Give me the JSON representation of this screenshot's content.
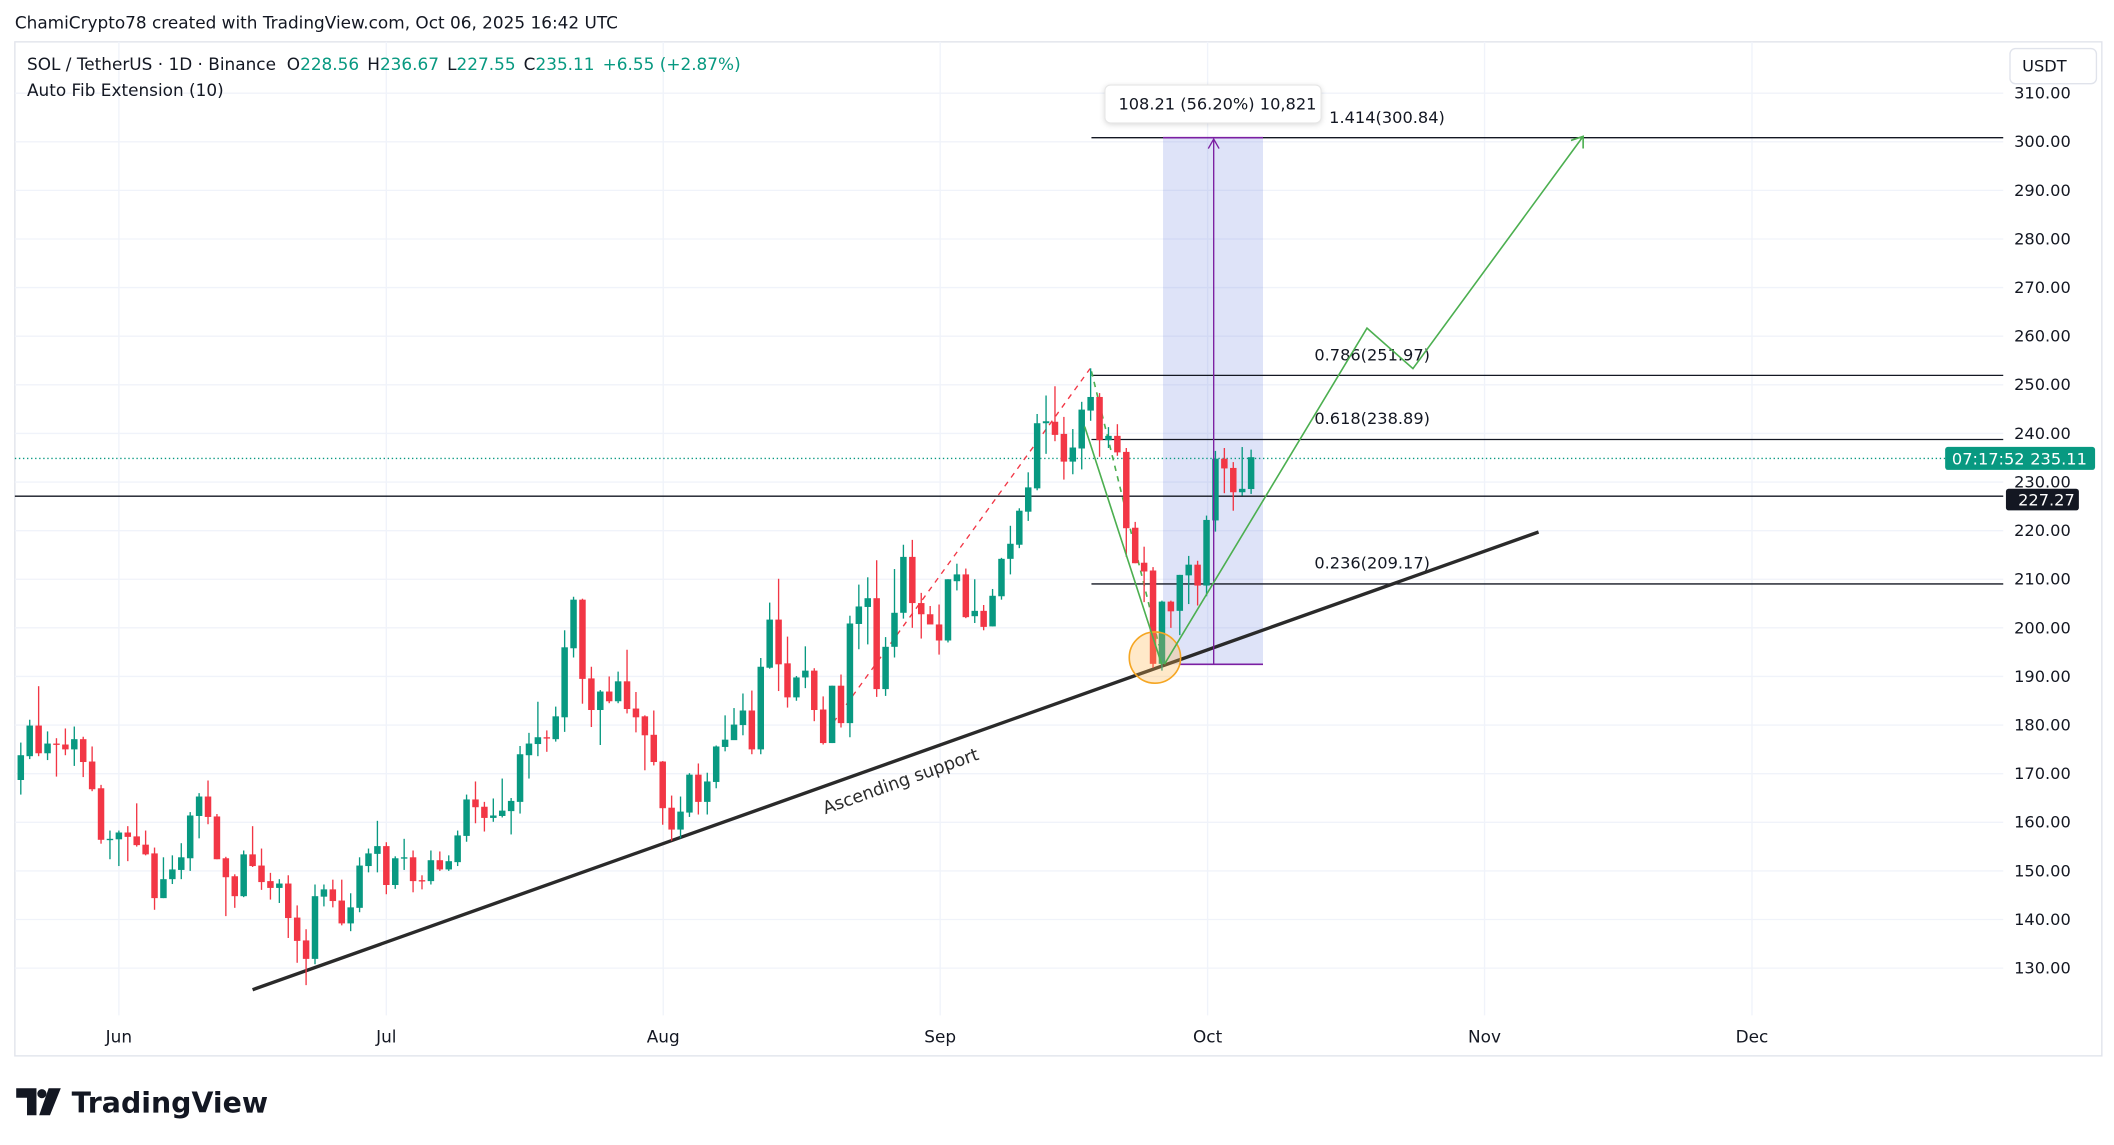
{
  "caption": "ChamiCrypto78 created with TradingView.com, Oct 06, 2025 16:42 UTC",
  "legend": {
    "symbol": "SOL / TetherUS · 1D · Binance",
    "o_label": "O",
    "o": "228.56",
    "h_label": "H",
    "h": "236.67",
    "l_label": "L",
    "l": "227.55",
    "c_label": "C",
    "c": "235.11",
    "change": "+6.55 (+2.87%)",
    "indicator": "Auto Fib Extension (10)"
  },
  "currency": "USDT",
  "price_label": {
    "price": "235.11",
    "countdown": "07:17:52"
  },
  "hline_label": "227.27",
  "measure_tooltip": "108.21 (56.20%) 10,821",
  "fib_levels": [
    "1.414(300.84)",
    "0.786(251.97)",
    "0.618(238.89)",
    "0.236(209.17)"
  ],
  "annotation": "Ascending support",
  "brand": "TradingView",
  "colors": {
    "up": "#089981",
    "down": "#f23645",
    "fib": "#131722",
    "projection": "#4caf50",
    "measure": "#7b1fa2",
    "circle": "#f5a623"
  },
  "chart_data": {
    "type": "candlestick",
    "title": "SOL / TetherUS · 1D · Binance",
    "start_date": "2025-05-21",
    "interval": "1D",
    "ylim": [
      120,
      315
    ],
    "y_ticks": [
      "310.00",
      "300.00",
      "290.00",
      "280.00",
      "270.00",
      "260.00",
      "250.00",
      "240.00",
      "230.00",
      "220.00",
      "210.00",
      "200.00",
      "190.00",
      "180.00",
      "170.00",
      "160.00",
      "150.00",
      "140.00",
      "130.00"
    ],
    "x_ticks": [
      "Jun",
      "Jul",
      "Aug",
      "Sep",
      "Oct",
      "Nov",
      "Dec"
    ],
    "ohlc": [
      [
        168.7,
        176.4,
        165.7,
        173.8
      ],
      [
        173.6,
        181.1,
        173,
        179.9
      ],
      [
        179.9,
        188,
        173.6,
        174.2
      ],
      [
        174.2,
        178.7,
        172.8,
        176.2
      ],
      [
        176.2,
        177.3,
        169.4,
        176
      ],
      [
        176,
        179.3,
        173.8,
        175
      ],
      [
        175,
        179.7,
        171.6,
        177.1
      ],
      [
        177.1,
        177.6,
        169.3,
        172.4
      ],
      [
        172.5,
        175.6,
        166.4,
        166.8
      ],
      [
        167,
        167.7,
        155.6,
        156.4
      ],
      [
        156.4,
        158.3,
        152.4,
        156.6
      ],
      [
        156.5,
        158.3,
        151,
        157.9
      ],
      [
        157.9,
        159.2,
        152,
        157
      ],
      [
        157.1,
        163.9,
        155,
        155.3
      ],
      [
        155.4,
        158.3,
        153.2,
        153.4
      ],
      [
        153.6,
        154.8,
        142,
        144.4
      ],
      [
        144.4,
        152.8,
        144.4,
        148.3
      ],
      [
        148.3,
        153.2,
        147.3,
        150.3
      ],
      [
        150.2,
        155.7,
        148.3,
        152.8
      ],
      [
        152.6,
        162.1,
        150,
        161.4
      ],
      [
        161.3,
        166,
        156.7,
        165.3
      ],
      [
        165.3,
        168.6,
        159.6,
        161.1
      ],
      [
        161.2,
        161.7,
        152.4,
        152.4
      ],
      [
        152.6,
        152.9,
        140.7,
        148.7
      ],
      [
        148.9,
        149.3,
        142.4,
        144.8
      ],
      [
        144.8,
        154.2,
        144.6,
        153.4
      ],
      [
        153.4,
        159.2,
        150.8,
        151
      ],
      [
        151.1,
        154.6,
        146.1,
        147.7
      ],
      [
        147.9,
        149.6,
        144.1,
        146.5
      ],
      [
        146.5,
        148.3,
        143.4,
        147.4
      ],
      [
        147.4,
        149.1,
        136.2,
        140.3
      ],
      [
        140.4,
        142.9,
        131.1,
        135.6
      ],
      [
        135.7,
        138,
        126.5,
        131.9
      ],
      [
        131.9,
        147.2,
        130.8,
        144.8
      ],
      [
        144.7,
        147.2,
        142.7,
        146.2
      ],
      [
        146.2,
        148.2,
        142.5,
        143.8
      ],
      [
        143.9,
        148.2,
        138.8,
        139.2
      ],
      [
        139.2,
        145.4,
        137.6,
        142.5
      ],
      [
        142.4,
        152.8,
        141.5,
        151.1
      ],
      [
        151,
        154.6,
        149.7,
        153.6
      ],
      [
        153.5,
        160.3,
        149.7,
        155.1
      ],
      [
        155.1,
        155.9,
        145.2,
        147.1
      ],
      [
        147.1,
        153,
        146.3,
        152.6
      ],
      [
        152.7,
        156.6,
        150.2,
        152.8
      ],
      [
        152.8,
        154.2,
        145.6,
        147.9
      ],
      [
        148.1,
        149.1,
        146.2,
        148
      ],
      [
        147.9,
        154.2,
        147.2,
        152.2
      ],
      [
        152.2,
        154,
        150,
        150.3
      ],
      [
        150.3,
        153.2,
        150,
        152
      ],
      [
        151.8,
        158.3,
        151,
        157.3
      ],
      [
        157.2,
        165.7,
        156,
        164.7
      ],
      [
        164.7,
        168.4,
        159.8,
        163.1
      ],
      [
        163.2,
        164.2,
        158.1,
        160.9
      ],
      [
        160.9,
        164.9,
        160.1,
        161.4
      ],
      [
        161.3,
        169,
        161,
        162.4
      ],
      [
        162.3,
        165,
        157.5,
        164.4
      ],
      [
        164.2,
        175.7,
        161.8,
        174
      ],
      [
        173.8,
        178.4,
        169,
        176.2
      ],
      [
        176.1,
        184.8,
        173.6,
        177.5
      ],
      [
        177.5,
        178.9,
        174.5,
        177.3
      ],
      [
        177.1,
        183.8,
        176.6,
        181.8
      ],
      [
        181.6,
        199.5,
        178.6,
        196
      ],
      [
        195.8,
        206.4,
        193.9,
        205.8
      ],
      [
        205.8,
        206,
        184.4,
        189.5
      ],
      [
        189.6,
        192,
        179.6,
        183.1
      ],
      [
        183.1,
        187.2,
        175.9,
        186.9
      ],
      [
        186.9,
        190,
        184.5,
        184.9
      ],
      [
        184.9,
        191,
        184.5,
        189
      ],
      [
        189,
        195.5,
        182.4,
        183.3
      ],
      [
        183.4,
        186.8,
        178.5,
        181.6
      ],
      [
        181.8,
        182,
        170.7,
        177.9
      ],
      [
        178,
        183,
        171.7,
        172.4
      ],
      [
        172.5,
        172.6,
        159.5,
        162.9
      ],
      [
        163,
        165.5,
        156.2,
        158.5
      ],
      [
        158.5,
        165.3,
        156.7,
        162.2
      ],
      [
        162,
        170.1,
        161.1,
        169.8
      ],
      [
        169.8,
        172.1,
        161.6,
        164.2
      ],
      [
        164.2,
        170.2,
        161.6,
        168.4
      ],
      [
        168.3,
        175.8,
        167,
        175.6
      ],
      [
        175.5,
        182,
        174.6,
        177
      ],
      [
        176.9,
        183.5,
        177.9,
        180.1
      ],
      [
        180,
        186.5,
        177.9,
        183
      ],
      [
        183,
        187.1,
        174,
        175
      ],
      [
        175,
        193.8,
        174,
        192
      ],
      [
        191.8,
        205.2,
        191.6,
        201.7
      ],
      [
        201.7,
        210.1,
        187,
        192.5
      ],
      [
        192.7,
        198.2,
        183.6,
        185.7
      ],
      [
        185.7,
        190.1,
        185,
        189.8
      ],
      [
        189.8,
        196.2,
        187.6,
        191.2
      ],
      [
        191.2,
        191.7,
        180.8,
        183.1
      ],
      [
        183.2,
        185.9,
        176,
        176.3
      ],
      [
        176.3,
        188.1,
        176.3,
        188.1
      ],
      [
        188.1,
        190.4,
        179.5,
        180.4
      ],
      [
        180.4,
        202.5,
        177.5,
        200.9
      ],
      [
        200.8,
        208.9,
        195.6,
        204.4
      ],
      [
        204.3,
        210.4,
        196.6,
        206.1
      ],
      [
        206.1,
        213.9,
        185.8,
        187.4
      ],
      [
        187.4,
        198.1,
        186,
        196.1
      ],
      [
        196.1,
        212.1,
        193.9,
        203.1
      ],
      [
        203.1,
        217.1,
        201.9,
        214.6
      ],
      [
        214.6,
        218.1,
        200,
        205.1
      ],
      [
        205.1,
        207.2,
        197.8,
        202.8
      ],
      [
        202.8,
        204.5,
        202,
        200.7
      ],
      [
        200.7,
        204.8,
        194.5,
        197.4
      ],
      [
        197.4,
        210,
        197,
        210
      ],
      [
        209.6,
        213.2,
        207.7,
        211
      ],
      [
        211,
        212.2,
        202,
        202.2
      ],
      [
        202.4,
        210,
        201,
        203.5
      ],
      [
        203.5,
        204.7,
        199.5,
        200.2
      ],
      [
        200.3,
        208,
        200.3,
        206.6
      ],
      [
        206.5,
        214.4,
        205.8,
        214.2
      ],
      [
        214.2,
        221,
        211,
        217.3
      ],
      [
        217.1,
        224.6,
        216.4,
        224.1
      ],
      [
        223.9,
        232,
        222,
        228.9
      ],
      [
        228.7,
        244,
        228.3,
        242.1
      ],
      [
        242.1,
        247.8,
        235.8,
        242.5
      ],
      [
        242.4,
        249.7,
        238.4,
        239.7
      ],
      [
        239.9,
        243.4,
        230.5,
        234.2
      ],
      [
        234.2,
        240.9,
        231.6,
        237.1
      ],
      [
        236.9,
        246.5,
        232.6,
        244.9
      ],
      [
        244.7,
        253.4,
        242.6,
        247.5
      ],
      [
        247.5,
        248.3,
        235.2,
        238.6
      ],
      [
        238.6,
        241.3,
        237,
        239.5
      ],
      [
        239.5,
        241.9,
        235.4,
        236.1
      ],
      [
        236.2,
        237,
        214.6,
        220.5
      ],
      [
        220.6,
        221.8,
        213.3,
        213.3
      ],
      [
        213.4,
        216.7,
        205.3,
        211.6
      ],
      [
        211.8,
        212.5,
        191.8,
        192.6
      ],
      [
        192.6,
        205.6,
        191.2,
        205.4
      ],
      [
        205.4,
        205.6,
        200,
        203.4
      ],
      [
        203.5,
        210.9,
        198.5,
        210.9
      ],
      [
        210.8,
        214.8,
        204.9,
        213
      ],
      [
        213,
        213.8,
        204.6,
        208.7
      ],
      [
        208.7,
        223.1,
        206.5,
        222.2
      ],
      [
        222.1,
        236.4,
        219.8,
        234.8
      ],
      [
        234.8,
        237,
        227.7,
        232.8
      ],
      [
        232.9,
        234.1,
        224.1,
        227.9
      ],
      [
        227.9,
        237.2,
        227.2,
        228.6
      ],
      [
        228.56,
        236.67,
        227.55,
        235.11
      ]
    ]
  }
}
